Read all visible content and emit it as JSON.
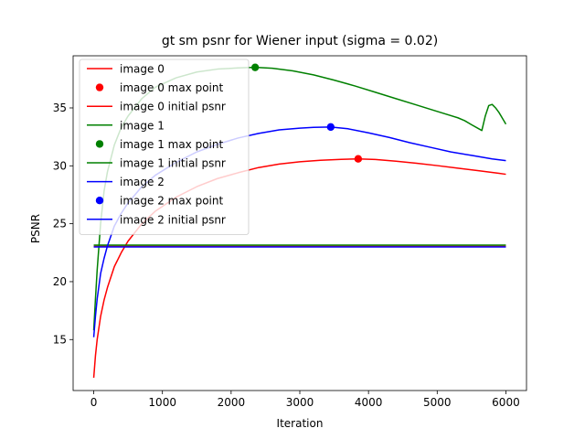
{
  "chart_data": {
    "type": "line",
    "title": "gt sm psnr for Wiener input (sigma = 0.02)",
    "xlabel": "Iteration",
    "ylabel": "PSNR",
    "xlim": [
      -300,
      6300
    ],
    "ylim": [
      10.6,
      39.5
    ],
    "xticks": [
      0,
      1000,
      2000,
      3000,
      4000,
      5000,
      6000
    ],
    "yticks": [
      15,
      20,
      25,
      30,
      35
    ],
    "legend_position": "upper-left",
    "grid": false,
    "series": [
      {
        "name": "image 0",
        "color": "#ff0000",
        "x": [
          0,
          25,
          50,
          100,
          150,
          200,
          300,
          400,
          500,
          700,
          900,
          1200,
          1500,
          1800,
          2100,
          2400,
          2700,
          3000,
          3300,
          3600,
          3850,
          4100,
          4400,
          4700,
          5000,
          5300,
          5600,
          5900,
          6000
        ],
        "y": [
          11.7,
          13.6,
          15.0,
          17.0,
          18.4,
          19.5,
          21.3,
          22.5,
          23.5,
          25.0,
          26.1,
          27.3,
          28.2,
          28.9,
          29.4,
          29.85,
          30.15,
          30.35,
          30.48,
          30.56,
          30.6,
          30.55,
          30.4,
          30.22,
          30.02,
          29.8,
          29.58,
          29.35,
          29.27
        ]
      },
      {
        "name": "image 0 max point",
        "color": "#ff0000",
        "point": [
          3850,
          30.6
        ]
      },
      {
        "name": "image 0 initial psnr",
        "color": "#ff0000",
        "x": [
          0,
          6000
        ],
        "y": [
          23.05,
          23.05
        ]
      },
      {
        "name": "image 1",
        "color": "#008000",
        "x": [
          0,
          25,
          50,
          100,
          150,
          200,
          300,
          400,
          500,
          700,
          900,
          1200,
          1500,
          1800,
          2100,
          2350,
          2600,
          2900,
          3200,
          3500,
          3800,
          4100,
          4400,
          4700,
          5000,
          5300,
          5400,
          5500,
          5650,
          5700,
          5750,
          5800,
          5850,
          5900,
          6000
        ],
        "y": [
          15.8,
          18.5,
          21.0,
          25.0,
          27.8,
          29.5,
          31.8,
          33.3,
          34.3,
          35.8,
          36.8,
          37.6,
          38.1,
          38.35,
          38.45,
          38.5,
          38.42,
          38.2,
          37.85,
          37.4,
          36.9,
          36.35,
          35.8,
          35.25,
          34.7,
          34.15,
          33.9,
          33.55,
          33.05,
          34.3,
          35.2,
          35.3,
          35.0,
          34.6,
          33.6
        ]
      },
      {
        "name": "image 1 max point",
        "color": "#008000",
        "point": [
          2350,
          38.5
        ]
      },
      {
        "name": "image 1 initial psnr",
        "color": "#008000",
        "x": [
          0,
          6000
        ],
        "y": [
          23.15,
          23.15
        ]
      },
      {
        "name": "image 2",
        "color": "#0000ff",
        "x": [
          0,
          25,
          50,
          100,
          150,
          200,
          300,
          400,
          500,
          700,
          900,
          1200,
          1500,
          1800,
          2100,
          2400,
          2700,
          3000,
          3200,
          3450,
          3700,
          4000,
          4300,
          4600,
          4900,
          5200,
          5500,
          5800,
          6000
        ],
        "y": [
          15.2,
          17.0,
          18.5,
          20.7,
          22.0,
          23.1,
          24.8,
          25.9,
          26.8,
          28.2,
          29.2,
          30.3,
          31.2,
          31.85,
          32.4,
          32.8,
          33.1,
          33.25,
          33.32,
          33.35,
          33.2,
          32.85,
          32.45,
          32.0,
          31.6,
          31.2,
          30.9,
          30.6,
          30.45
        ]
      },
      {
        "name": "image 2 max point",
        "color": "#0000ff",
        "point": [
          3450,
          33.35
        ]
      },
      {
        "name": "image 2 initial psnr",
        "color": "#0000ff",
        "x": [
          0,
          6000
        ],
        "y": [
          23.0,
          23.0
        ]
      }
    ]
  }
}
